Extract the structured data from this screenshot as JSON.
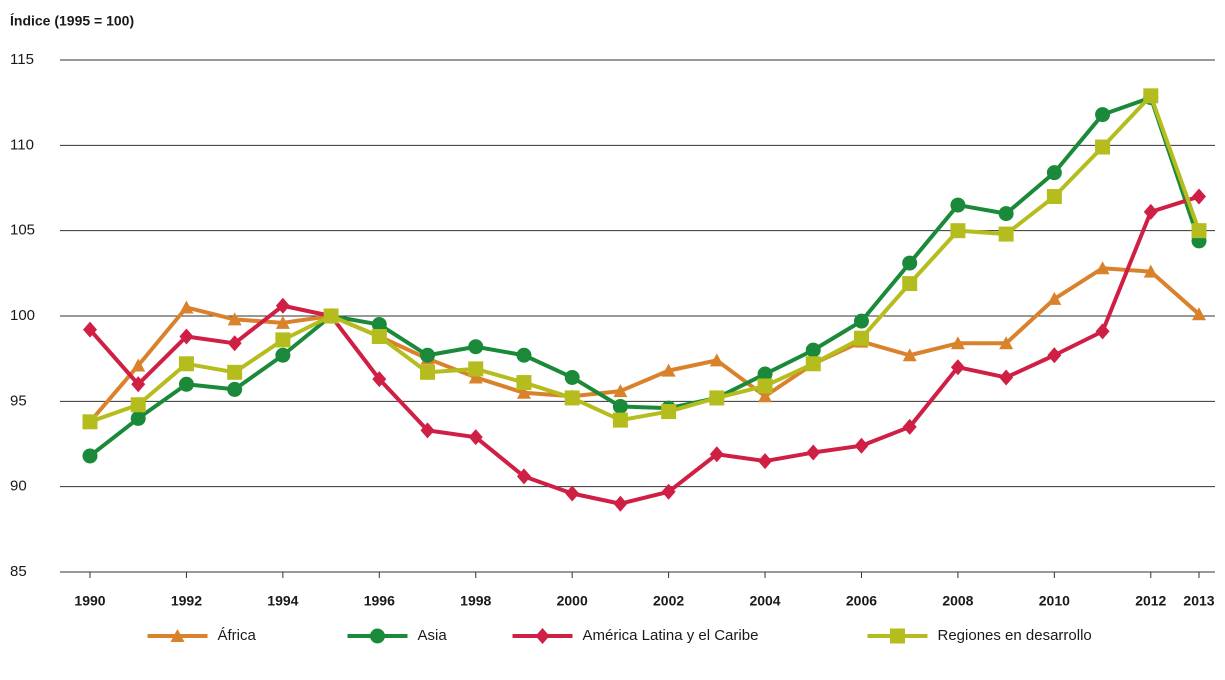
{
  "chart_data": {
    "type": "line",
    "y_label": "Índice (1995 = 100)",
    "x": [
      1990,
      1991,
      1992,
      1993,
      1994,
      1995,
      1996,
      1997,
      1998,
      1999,
      2000,
      2001,
      2002,
      2003,
      2004,
      2005,
      2006,
      2007,
      2008,
      2009,
      2010,
      2011,
      2012,
      2013
    ],
    "xlim": [
      1990,
      2013
    ],
    "xticks": [
      1990,
      1992,
      1994,
      1996,
      1998,
      2000,
      2002,
      2004,
      2006,
      2008,
      2010,
      2012,
      2013
    ],
    "ylim": [
      85,
      115
    ],
    "yticks": [
      85,
      90,
      95,
      100,
      105,
      110,
      115
    ],
    "grid": true,
    "legend": "bottom",
    "series": [
      {
        "name": "África",
        "color": "#d9822b",
        "marker": "triangle",
        "values": [
          93.8,
          97.1,
          100.5,
          99.8,
          99.6,
          100,
          98.8,
          97.5,
          96.4,
          95.5,
          95.3,
          95.6,
          96.8,
          97.4,
          95.3,
          97.2,
          98.5,
          97.7,
          98.4,
          98.4,
          101,
          102.8,
          102.6,
          100.1
        ]
      },
      {
        "name": "Asia",
        "color": "#1a8a3a",
        "marker": "circle",
        "values": [
          91.8,
          94,
          96,
          95.7,
          97.7,
          100,
          99.5,
          97.7,
          98.2,
          97.7,
          96.4,
          94.7,
          94.6,
          95.2,
          96.6,
          98,
          99.7,
          103.1,
          106.5,
          106,
          108.4,
          111.8,
          112.8,
          104.4
        ]
      },
      {
        "name": "América Latina y el Caribe",
        "color": "#d01f44",
        "marker": "diamond",
        "values": [
          99.2,
          96,
          98.8,
          98.4,
          100.6,
          100,
          96.3,
          93.3,
          92.9,
          90.6,
          89.6,
          89,
          89.7,
          91.9,
          91.5,
          92,
          92.4,
          93.5,
          97,
          96.4,
          97.7,
          99.1,
          106.1,
          107
        ]
      },
      {
        "name": "Regiones en desarrollo",
        "color": "#b5bd1e",
        "marker": "square",
        "values": [
          93.8,
          94.8,
          97.2,
          96.7,
          98.6,
          100,
          98.8,
          96.7,
          96.9,
          96.1,
          95.2,
          93.9,
          94.4,
          95.2,
          95.9,
          97.2,
          98.7,
          101.9,
          105,
          104.8,
          107,
          109.9,
          112.9,
          105
        ]
      }
    ]
  }
}
